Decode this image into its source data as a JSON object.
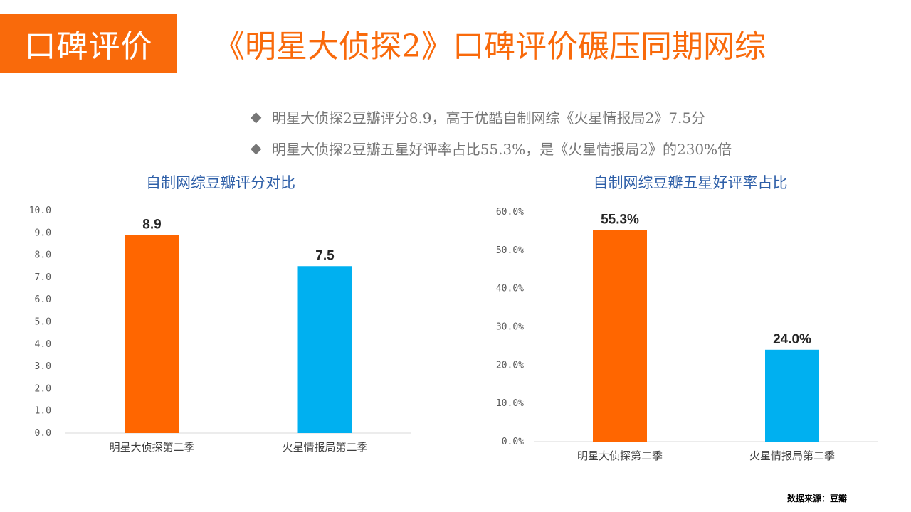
{
  "header": {
    "tag": "口碑评价",
    "title": "《明星大侦探2》口碑评价碾压同期网综"
  },
  "bullets": [
    "明星大侦探2豆瓣评分8.9，高于优酷自制网综《火星情报局2》7.5分",
    "明星大侦探2豆瓣五星好评率占比55.3%，是《火星情报局2》的230%倍"
  ],
  "chart_data": [
    {
      "type": "bar",
      "title": "自制网综豆瓣评分对比",
      "categories": [
        "明星大侦探第二季",
        "火星情报局第二季"
      ],
      "values": [
        8.9,
        7.5
      ],
      "value_labels": [
        "8.9",
        "7.5"
      ],
      "bar_colors": [
        "#ff6600",
        "#00b0f0"
      ],
      "ylim": [
        0,
        10
      ],
      "yticks": [
        "0.0",
        "1.0",
        "2.0",
        "3.0",
        "4.0",
        "5.0",
        "6.0",
        "7.0",
        "8.0",
        "9.0",
        "10.0"
      ],
      "grid": false,
      "xlabel": "",
      "ylabel": ""
    },
    {
      "type": "bar",
      "title": "自制网综豆瓣五星好评率占比",
      "categories": [
        "明星大侦探第二季",
        "火星情报局第二季"
      ],
      "values": [
        55.3,
        24.0
      ],
      "value_labels": [
        "55.3%",
        "24.0%"
      ],
      "bar_colors": [
        "#ff6600",
        "#00b0f0"
      ],
      "ylim": [
        0,
        60
      ],
      "yticks": [
        "0.0%",
        "10.0%",
        "20.0%",
        "30.0%",
        "40.0%",
        "50.0%",
        "60.0%"
      ],
      "grid": false,
      "xlabel": "",
      "ylabel": ""
    }
  ],
  "footer": {
    "source": "数据来源：豆瓣"
  },
  "colors": {
    "accent": "#f96a0b",
    "chart_title": "#2e5fa8",
    "bullet_text": "#767676"
  },
  "icons": {
    "bullet": "diamond-icon"
  }
}
